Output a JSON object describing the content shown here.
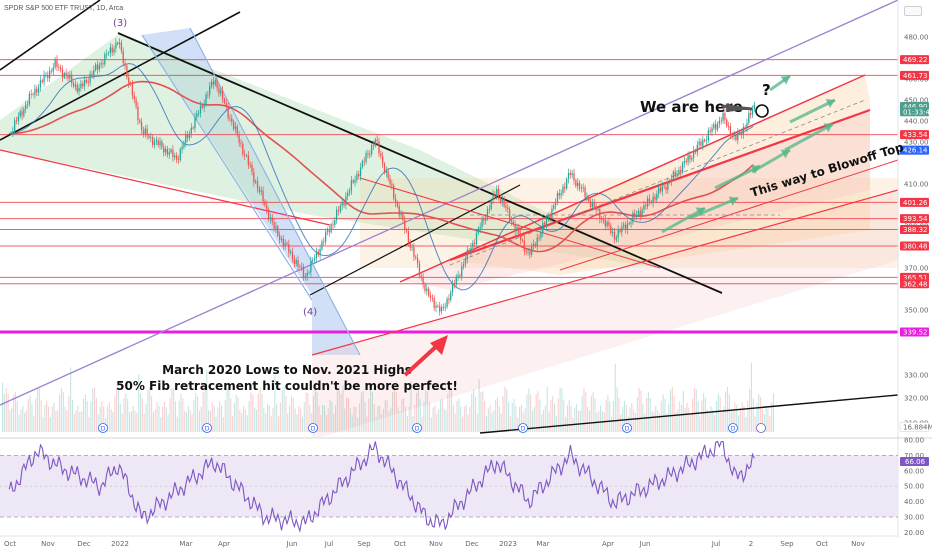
{
  "header": {
    "symbol_line": "SPDR S&P 500 ETF TRUST, 1D, Arca"
  },
  "colors": {
    "up": "#26a69a",
    "down": "#ef5350",
    "level": "#f23645",
    "wedge": "#f23645",
    "rsi": "#7e57c2",
    "rsi_band": "#ede7f6",
    "magenta": "#e91ee0",
    "purple_trend": "#9c7fd0",
    "blue_channel": "#90b4e8",
    "green_arrow": "#52b788",
    "ma_red": "#e05252",
    "ma_blue": "#2962ff"
  },
  "annotations": {
    "we_are_here": "We are here",
    "question": "?",
    "blowoff": "This way to Blowoff Top",
    "march_line1": "March 2020 Lows to Nov. 2021 Highs",
    "march_line2": "50% Fib retracement hit couldn't be more perfect!",
    "wave3": "(3)",
    "wave4": "(4)"
  },
  "chart_data": [
    {
      "type": "line",
      "series_kind": "candlestick",
      "title": "SPDR S&P 500 ETF TRUST, 1D, Arca",
      "x_tick_labels": [
        "Oct",
        "Nov",
        "Dec",
        "2022",
        "Mar",
        "Apr",
        "Jun",
        "Jul",
        "Sep",
        "Oct",
        "Nov",
        "Dec",
        "2023",
        "Mar",
        "Apr",
        "Jun",
        "Jul",
        "2",
        "Sep",
        "Oct",
        "Nov"
      ],
      "y_tick_labels": [
        "480.00",
        "460.00",
        "450.00",
        "440.00",
        "430.00",
        "410.00",
        "390.00",
        "370.00",
        "350.00",
        "330.00",
        "320.00",
        "310.00"
      ],
      "ylim": [
        305,
        490
      ],
      "approx_close_path": [
        {
          "x": "2021-10-01",
          "y": 434
        },
        {
          "x": "2021-10-20",
          "y": 452
        },
        {
          "x": "2021-11-10",
          "y": 467
        },
        {
          "x": "2021-12-01",
          "y": 455
        },
        {
          "x": "2022-01-04",
          "y": 478
        },
        {
          "x": "2022-01-25",
          "y": 435
        },
        {
          "x": "2022-02-24",
          "y": 422
        },
        {
          "x": "2022-03-29",
          "y": 460
        },
        {
          "x": "2022-05-20",
          "y": 389
        },
        {
          "x": "2022-06-16",
          "y": 366
        },
        {
          "x": "2022-07-29",
          "y": 412
        },
        {
          "x": "2022-08-16",
          "y": 431
        },
        {
          "x": "2022-09-30",
          "y": 358
        },
        {
          "x": "2022-10-13",
          "y": 349
        },
        {
          "x": "2022-11-30",
          "y": 407
        },
        {
          "x": "2022-12-28",
          "y": 376
        },
        {
          "x": "2023-02-02",
          "y": 415
        },
        {
          "x": "2023-03-13",
          "y": 385
        },
        {
          "x": "2023-05-01",
          "y": 412
        },
        {
          "x": "2023-06-15",
          "y": 442
        },
        {
          "x": "2023-06-26",
          "y": 431
        },
        {
          "x": "2023-07-06",
          "y": 439
        },
        {
          "x": "2023-07-14",
          "y": 449
        }
      ],
      "price_tags": [
        {
          "label": "469.22",
          "value": 469.22,
          "color": "#f23645"
        },
        {
          "label": "461.73",
          "value": 461.73,
          "color": "#f23645"
        },
        {
          "label": "446.90",
          "value": 446.9,
          "color": "#4c9e8e"
        },
        {
          "label": "01:33:48",
          "value": 444.4,
          "color": "#4c9e8e"
        },
        {
          "label": "433.54",
          "value": 433.54,
          "color": "#f23645"
        },
        {
          "label": "426.14",
          "value": 426.14,
          "color": "#2962ff"
        },
        {
          "label": "401.26",
          "value": 401.26,
          "color": "#f23645"
        },
        {
          "label": "393.54",
          "value": 393.54,
          "color": "#f23645"
        },
        {
          "label": "388.32",
          "value": 388.32,
          "color": "#f23645"
        },
        {
          "label": "380.48",
          "value": 380.48,
          "color": "#f23645"
        },
        {
          "label": "365.51",
          "value": 365.51,
          "color": "#f23645"
        },
        {
          "label": "362.48",
          "value": 362.48,
          "color": "#f23645"
        },
        {
          "label": "339.52",
          "value": 339.52,
          "color": "#e91ee0"
        },
        {
          "label": "16.884M",
          "value": 313.0,
          "color": "#ffffff"
        }
      ],
      "horizontal_levels": [
        469.22,
        461.73,
        433.54,
        401.26,
        393.54,
        388.32,
        380.48,
        365.51,
        362.48,
        339.52
      ],
      "dividend_markers": [
        "D",
        "D",
        "D",
        "D",
        "D",
        "D",
        "D"
      ]
    },
    {
      "type": "line",
      "title": "RSI",
      "y_tick_labels": [
        "80.00",
        "70.00",
        "60.00",
        "50.00",
        "40.00",
        "30.00",
        "20.00"
      ],
      "ylim": [
        20,
        80
      ],
      "band": [
        30,
        70
      ],
      "last_value_label": "66.06",
      "approx_values": [
        {
          "x": "2021-10-01",
          "y": 45
        },
        {
          "x": "2021-10-25",
          "y": 73
        },
        {
          "x": "2021-11-15",
          "y": 62
        },
        {
          "x": "2021-12-20",
          "y": 50
        },
        {
          "x": "2022-01-04",
          "y": 64
        },
        {
          "x": "2022-01-25",
          "y": 29
        },
        {
          "x": "2022-03-29",
          "y": 66
        },
        {
          "x": "2022-05-12",
          "y": 30
        },
        {
          "x": "2022-06-16",
          "y": 26
        },
        {
          "x": "2022-08-16",
          "y": 75
        },
        {
          "x": "2022-09-30",
          "y": 29
        },
        {
          "x": "2022-10-13",
          "y": 25
        },
        {
          "x": "2022-11-30",
          "y": 66
        },
        {
          "x": "2022-12-28",
          "y": 40
        },
        {
          "x": "2023-02-02",
          "y": 70
        },
        {
          "x": "2023-03-13",
          "y": 39
        },
        {
          "x": "2023-05-01",
          "y": 57
        },
        {
          "x": "2023-06-15",
          "y": 78
        },
        {
          "x": "2023-06-26",
          "y": 55
        },
        {
          "x": "2023-07-14",
          "y": 66
        }
      ]
    }
  ]
}
